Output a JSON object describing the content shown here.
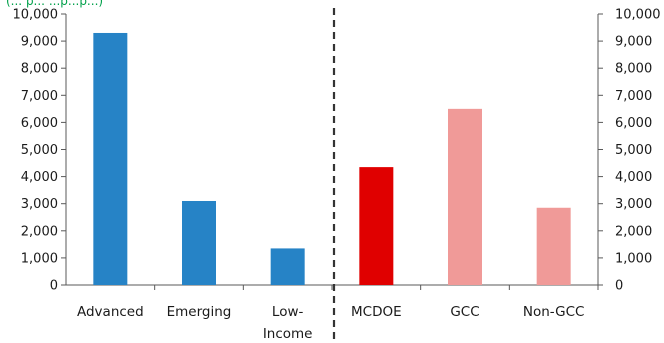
{
  "chart_data": {
    "type": "bar",
    "note": "(... p... ...p...p...)",
    "categories": [
      "Advanced",
      "Emerging",
      "Low-Income",
      "MCDOE",
      "GCC",
      "Non-GCC"
    ],
    "category_label_lines": [
      [
        "Advanced"
      ],
      [
        "Emerging"
      ],
      [
        "Low-",
        "Income"
      ],
      [
        "MCDOE"
      ],
      [
        "GCC"
      ],
      [
        "Non-GCC"
      ]
    ],
    "values": [
      9300,
      3100,
      1350,
      4350,
      6500,
      2850
    ],
    "colors": [
      "#2683c6",
      "#2683c6",
      "#2683c6",
      "#e00000",
      "#f09a98",
      "#f09a98"
    ],
    "ylim": [
      0,
      10000
    ],
    "yticks": [
      "0",
      "1,000",
      "2,000",
      "3,000",
      "4,000",
      "5,000",
      "6,000",
      "7,000",
      "8,000",
      "9,000",
      "10,000"
    ],
    "y_right_ticks": [
      "0",
      "1,000",
      "2,000",
      "3,000",
      "4,000",
      "5,000",
      "6,000",
      "7,000",
      "8,000",
      "9,000",
      "10,000"
    ],
    "separator": "dashed vertical line between Low-Income and MCDOE",
    "grid": false,
    "legend": "none"
  }
}
